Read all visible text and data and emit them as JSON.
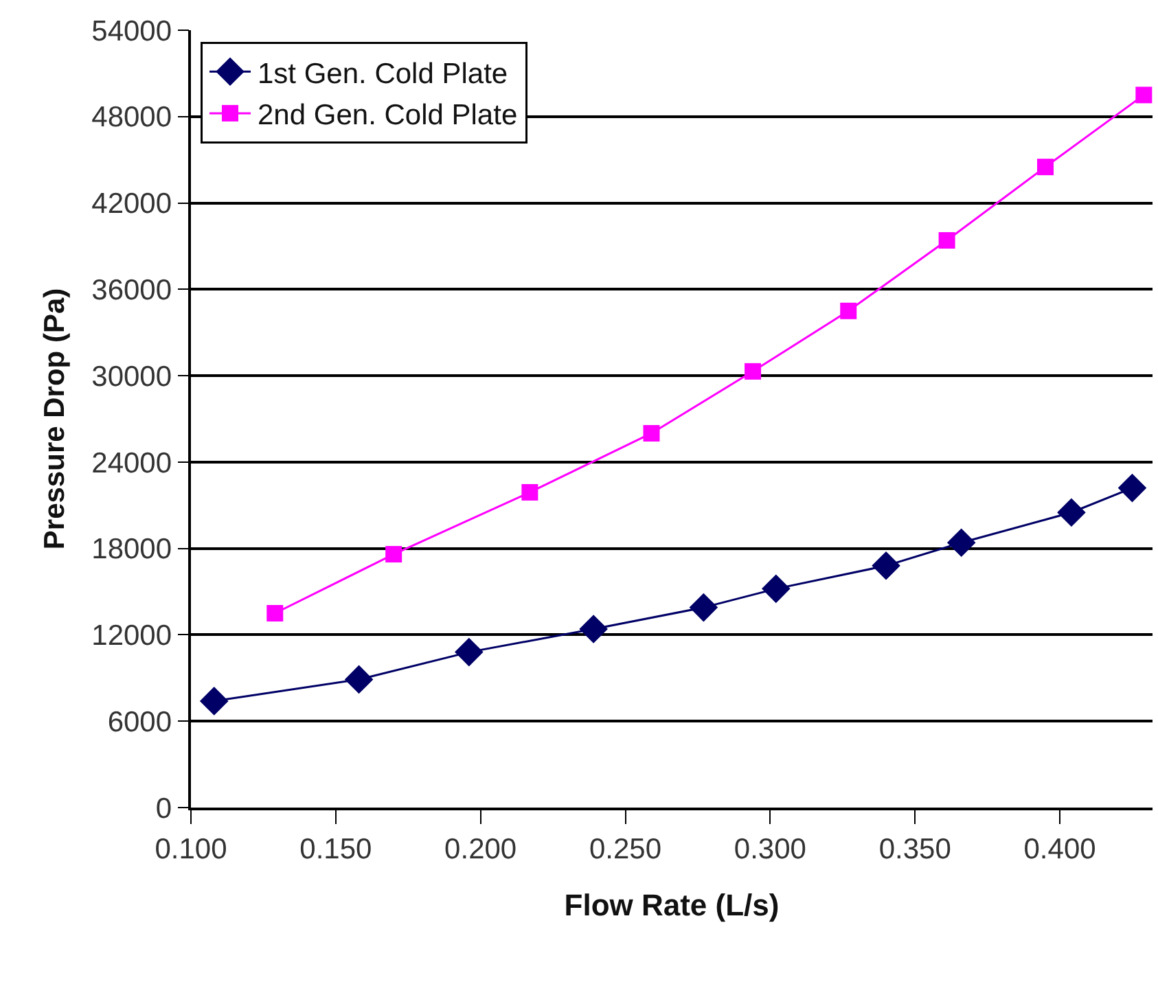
{
  "chart_data": {
    "type": "line",
    "xlabel": "Flow Rate (L/s)",
    "ylabel": "Pressure Drop (Pa)",
    "xlim": [
      0.1,
      0.432
    ],
    "xticks": [
      {
        "value": 0.1,
        "label": "0.100"
      },
      {
        "value": 0.15,
        "label": "0.150"
      },
      {
        "value": 0.2,
        "label": "0.200"
      },
      {
        "value": 0.25,
        "label": "0.250"
      },
      {
        "value": 0.3,
        "label": "0.300"
      },
      {
        "value": 0.35,
        "label": "0.350"
      },
      {
        "value": 0.4,
        "label": "0.400"
      }
    ],
    "ylim": [
      0,
      54000
    ],
    "yticks": [
      0,
      6000,
      12000,
      18000,
      24000,
      30000,
      36000,
      42000,
      48000,
      54000
    ],
    "grid": "y",
    "legend": "top left",
    "series": [
      {
        "name": "1st Gen. Cold Plate",
        "color": "#000066",
        "marker": "diamond",
        "x": [
          0.108,
          0.158,
          0.196,
          0.239,
          0.277,
          0.302,
          0.34,
          0.366,
          0.404,
          0.425
        ],
        "values": [
          7400,
          8900,
          10800,
          12400,
          13900,
          15200,
          16800,
          18400,
          20500,
          22200
        ]
      },
      {
        "name": "2nd Gen. Cold Plate",
        "color": "#ff00ff",
        "marker": "square",
        "x": [
          0.129,
          0.17,
          0.217,
          0.259,
          0.294,
          0.327,
          0.361,
          0.395,
          0.429
        ],
        "values": [
          13500,
          17600,
          21900,
          26000,
          30300,
          34500,
          39400,
          44500,
          49500
        ]
      }
    ]
  }
}
